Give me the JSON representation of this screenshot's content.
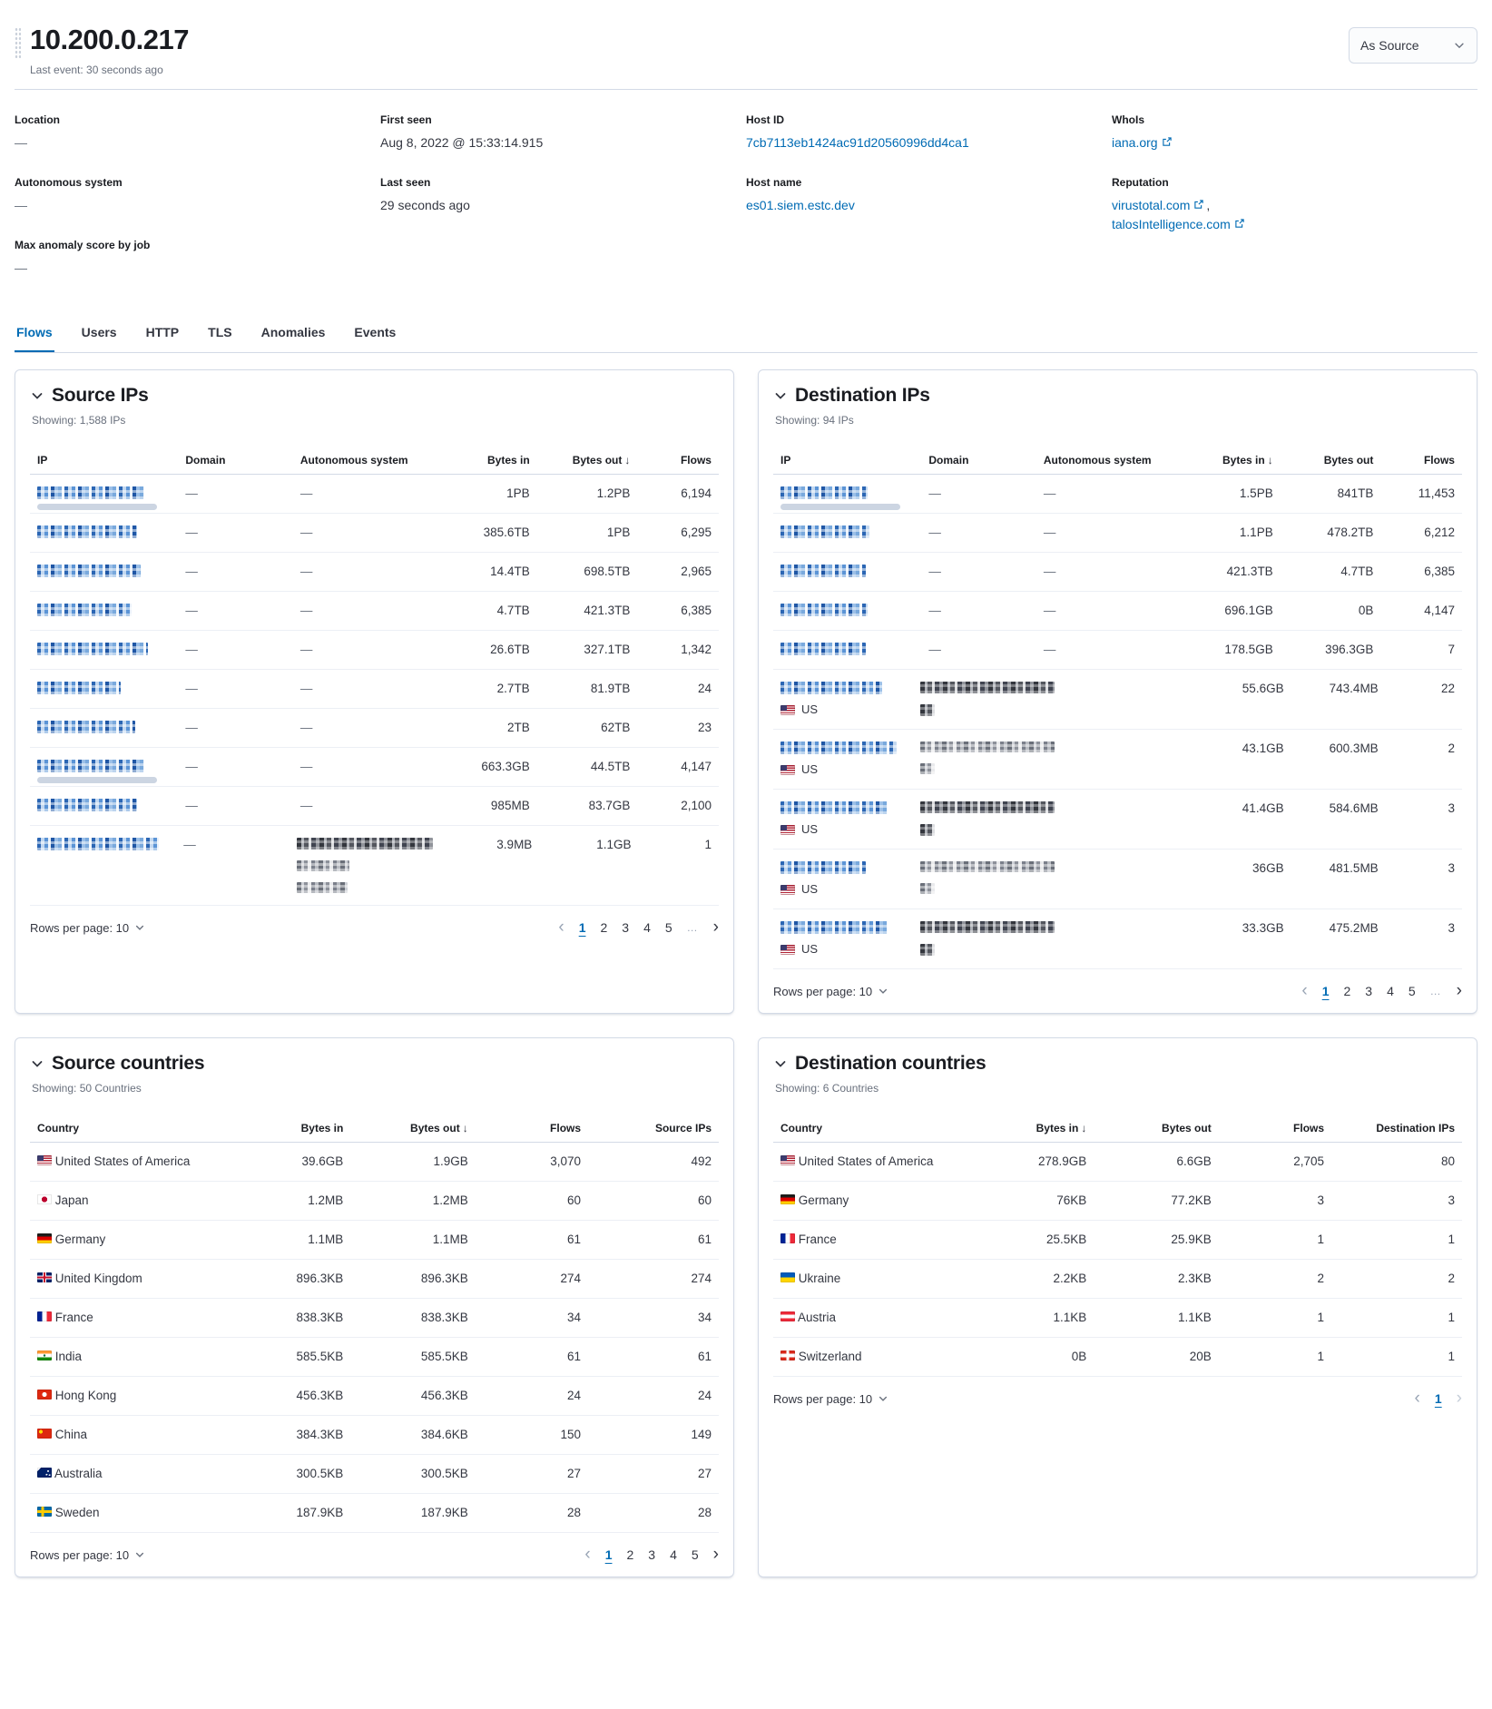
{
  "header": {
    "title": "10.200.0.217",
    "last_event": "Last event: 30 seconds ago",
    "view_selector": "As Source"
  },
  "overview": {
    "location_label": "Location",
    "location_value": "—",
    "autonomous_system_label": "Autonomous system",
    "autonomous_system_value": "—",
    "anomaly_label": "Max anomaly score by job",
    "anomaly_value": "—",
    "first_seen_label": "First seen",
    "first_seen_value": "Aug 8, 2022 @ 15:33:14.915",
    "last_seen_label": "Last seen",
    "last_seen_value": "29 seconds ago",
    "host_id_label": "Host ID",
    "host_id_value": "7cb7113eb1424ac91d20560996dd4ca1",
    "host_name_label": "Host name",
    "host_name_value": "es01.siem.estc.dev",
    "whois_label": "WhoIs",
    "whois_value": "iana.org",
    "reputation_label": "Reputation",
    "reputation_link_1": "virustotal.com",
    "reputation_separator": ",",
    "reputation_link_2": "talosIntelligence.com"
  },
  "tabs": [
    {
      "label": "Flows",
      "active": true
    },
    {
      "label": "Users",
      "active": false
    },
    {
      "label": "HTTP",
      "active": false
    },
    {
      "label": "TLS",
      "active": false
    },
    {
      "label": "Anomalies",
      "active": false
    },
    {
      "label": "Events",
      "active": false
    }
  ],
  "source_ips": {
    "title": "Source IPs",
    "showing": "Showing: 1,588 IPs",
    "columns": {
      "ip": "IP",
      "domain": "Domain",
      "autonomous_system": "Autonomous system",
      "bytes_in": "Bytes in",
      "bytes_out": "Bytes out",
      "flows": "Flows"
    },
    "sorted_by": "bytes_out",
    "rows": [
      {
        "censored_ip": true,
        "indicator_bar": true,
        "domain": "—",
        "autonomous_system": "—",
        "bytes_in": "1PB",
        "bytes_out": "1.2PB",
        "flows": "6,194"
      },
      {
        "censored_ip": true,
        "domain": "—",
        "autonomous_system": "—",
        "bytes_in": "385.6TB",
        "bytes_out": "1PB",
        "flows": "6,295"
      },
      {
        "censored_ip": true,
        "domain": "—",
        "autonomous_system": "—",
        "bytes_in": "14.4TB",
        "bytes_out": "698.5TB",
        "flows": "2,965"
      },
      {
        "censored_ip": true,
        "domain": "—",
        "autonomous_system": "—",
        "bytes_in": "4.7TB",
        "bytes_out": "421.3TB",
        "flows": "6,385"
      },
      {
        "censored_ip": true,
        "domain": "—",
        "autonomous_system": "—",
        "bytes_in": "26.6TB",
        "bytes_out": "327.1TB",
        "flows": "1,342"
      },
      {
        "censored_ip": true,
        "domain": "—",
        "autonomous_system": "—",
        "bytes_in": "2.7TB",
        "bytes_out": "81.9TB",
        "flows": "24"
      },
      {
        "censored_ip": true,
        "domain": "—",
        "autonomous_system": "—",
        "bytes_in": "2TB",
        "bytes_out": "62TB",
        "flows": "23"
      },
      {
        "censored_ip": true,
        "indicator_bar": true,
        "domain": "—",
        "autonomous_system": "—",
        "bytes_in": "663.3GB",
        "bytes_out": "44.5TB",
        "flows": "4,147"
      },
      {
        "censored_ip": true,
        "domain": "—",
        "autonomous_system": "—",
        "bytes_in": "985MB",
        "bytes_out": "83.7GB",
        "flows": "2,100"
      },
      {
        "censored_ip": true,
        "domain": "—",
        "censored_autonomous_system": true,
        "bytes_in": "3.9MB",
        "bytes_out": "1.1GB",
        "flows": "1"
      }
    ],
    "rows_per_page": "Rows per page: 10",
    "pagination": {
      "pages": [
        "1",
        "2",
        "3",
        "4",
        "5"
      ],
      "ellipsis": true,
      "active": "1",
      "prev_enabled": false,
      "next_enabled": true
    }
  },
  "destination_ips": {
    "title": "Destination IPs",
    "showing": "Showing: 94 IPs",
    "columns": {
      "ip": "IP",
      "domain": "Domain",
      "autonomous_system": "Autonomous system",
      "bytes_in": "Bytes in",
      "bytes_out": "Bytes out",
      "flows": "Flows"
    },
    "sorted_by": "bytes_in",
    "rows": [
      {
        "censored_ip": true,
        "indicator_bar": true,
        "domain": "—",
        "autonomous_system": "—",
        "bytes_in": "1.5PB",
        "bytes_out": "841TB",
        "flows": "11,453"
      },
      {
        "censored_ip": true,
        "domain": "—",
        "autonomous_system": "—",
        "bytes_in": "1.1PB",
        "bytes_out": "478.2TB",
        "flows": "6,212"
      },
      {
        "censored_ip": true,
        "domain": "—",
        "autonomous_system": "—",
        "bytes_in": "421.3TB",
        "bytes_out": "4.7TB",
        "flows": "6,385"
      },
      {
        "censored_ip": true,
        "domain": "—",
        "autonomous_system": "—",
        "bytes_in": "696.1GB",
        "bytes_out": "0B",
        "flows": "4,147"
      },
      {
        "censored_ip": true,
        "domain": "—",
        "autonomous_system": "—",
        "bytes_in": "178.5GB",
        "bytes_out": "396.3GB",
        "flows": "7"
      },
      {
        "censored_ip": true,
        "flag": "us",
        "country_code": "US",
        "censored_domain": true,
        "bytes_in": "55.6GB",
        "bytes_out": "743.4MB",
        "flows": "22"
      },
      {
        "censored_ip": true,
        "flag": "us",
        "country_code": "US",
        "censored_domain": true,
        "bytes_in": "43.1GB",
        "bytes_out": "600.3MB",
        "flows": "2"
      },
      {
        "censored_ip": true,
        "flag": "us",
        "country_code": "US",
        "censored_domain": true,
        "bytes_in": "41.4GB",
        "bytes_out": "584.6MB",
        "flows": "3"
      },
      {
        "censored_ip": true,
        "flag": "us",
        "country_code": "US",
        "censored_domain": true,
        "bytes_in": "36GB",
        "bytes_out": "481.5MB",
        "flows": "3"
      },
      {
        "censored_ip": true,
        "flag": "us",
        "country_code": "US",
        "censored_domain": true,
        "bytes_in": "33.3GB",
        "bytes_out": "475.2MB",
        "flows": "3"
      }
    ],
    "rows_per_page": "Rows per page: 10",
    "pagination": {
      "pages": [
        "1",
        "2",
        "3",
        "4",
        "5"
      ],
      "ellipsis": true,
      "active": "1",
      "prev_enabled": false,
      "next_enabled": true
    }
  },
  "source_countries": {
    "title": "Source countries",
    "showing": "Showing: 50 Countries",
    "columns": {
      "country": "Country",
      "bytes_in": "Bytes in",
      "bytes_out": "Bytes out",
      "flows": "Flows",
      "ips": "Source IPs"
    },
    "sorted_by": "bytes_out",
    "rows": [
      {
        "flag": "us",
        "country": "United States of America",
        "bytes_in": "39.6GB",
        "bytes_out": "1.9GB",
        "flows": "3,070",
        "ips": "492"
      },
      {
        "flag": "jp",
        "country": "Japan",
        "bytes_in": "1.2MB",
        "bytes_out": "1.2MB",
        "flows": "60",
        "ips": "60"
      },
      {
        "flag": "de",
        "country": "Germany",
        "bytes_in": "1.1MB",
        "bytes_out": "1.1MB",
        "flows": "61",
        "ips": "61"
      },
      {
        "flag": "gb",
        "country": "United Kingdom",
        "bytes_in": "896.3KB",
        "bytes_out": "896.3KB",
        "flows": "274",
        "ips": "274"
      },
      {
        "flag": "fr",
        "country": "France",
        "bytes_in": "838.3KB",
        "bytes_out": "838.3KB",
        "flows": "34",
        "ips": "34"
      },
      {
        "flag": "in",
        "country": "India",
        "bytes_in": "585.5KB",
        "bytes_out": "585.5KB",
        "flows": "61",
        "ips": "61"
      },
      {
        "flag": "hk",
        "country": "Hong Kong",
        "bytes_in": "456.3KB",
        "bytes_out": "456.3KB",
        "flows": "24",
        "ips": "24"
      },
      {
        "flag": "cn",
        "country": "China",
        "bytes_in": "384.3KB",
        "bytes_out": "384.6KB",
        "flows": "150",
        "ips": "149"
      },
      {
        "flag": "au",
        "country": "Australia",
        "bytes_in": "300.5KB",
        "bytes_out": "300.5KB",
        "flows": "27",
        "ips": "27"
      },
      {
        "flag": "se",
        "country": "Sweden",
        "bytes_in": "187.9KB",
        "bytes_out": "187.9KB",
        "flows": "28",
        "ips": "28"
      }
    ],
    "rows_per_page": "Rows per page: 10",
    "pagination": {
      "pages": [
        "1",
        "2",
        "3",
        "4",
        "5"
      ],
      "ellipsis": false,
      "active": "1",
      "prev_enabled": false,
      "next_enabled": true
    }
  },
  "destination_countries": {
    "title": "Destination countries",
    "showing": "Showing: 6 Countries",
    "columns": {
      "country": "Country",
      "bytes_in": "Bytes in",
      "bytes_out": "Bytes out",
      "flows": "Flows",
      "ips": "Destination IPs"
    },
    "sorted_by": "bytes_in",
    "rows": [
      {
        "flag": "us",
        "country": "United States of America",
        "bytes_in": "278.9GB",
        "bytes_out": "6.6GB",
        "flows": "2,705",
        "ips": "80"
      },
      {
        "flag": "de",
        "country": "Germany",
        "bytes_in": "76KB",
        "bytes_out": "77.2KB",
        "flows": "3",
        "ips": "3"
      },
      {
        "flag": "fr",
        "country": "France",
        "bytes_in": "25.5KB",
        "bytes_out": "25.9KB",
        "flows": "1",
        "ips": "1"
      },
      {
        "flag": "ua",
        "country": "Ukraine",
        "bytes_in": "2.2KB",
        "bytes_out": "2.3KB",
        "flows": "2",
        "ips": "2"
      },
      {
        "flag": "at",
        "country": "Austria",
        "bytes_in": "1.1KB",
        "bytes_out": "1.1KB",
        "flows": "1",
        "ips": "1"
      },
      {
        "flag": "ch",
        "country": "Switzerland",
        "bytes_in": "0B",
        "bytes_out": "20B",
        "flows": "1",
        "ips": "1"
      }
    ],
    "rows_per_page": "Rows per page: 10",
    "pagination": {
      "pages": [
        "1"
      ],
      "ellipsis": false,
      "active": "1",
      "prev_enabled": false,
      "next_enabled": false
    }
  }
}
